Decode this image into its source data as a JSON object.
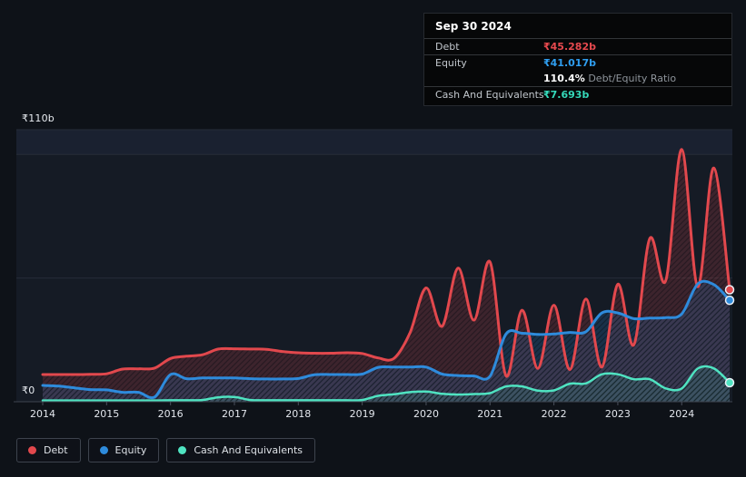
{
  "axis": {
    "y_max_label": "₹110b",
    "y_zero_label": "₹0"
  },
  "tooltip": {
    "date": "Sep 30 2024",
    "debt_label": "Debt",
    "debt_value": "₹45.282b",
    "equity_label": "Equity",
    "equity_value": "₹41.017b",
    "ratio_value": "110.4%",
    "ratio_label": "Debt/Equity Ratio",
    "cash_label": "Cash And Equivalents",
    "cash_value": "₹7.693b"
  },
  "legend": {
    "items": [
      {
        "label": "Debt",
        "color": "#e2484d"
      },
      {
        "label": "Equity",
        "color": "#2e8bdc"
      },
      {
        "label": "Cash And Equivalents",
        "color": "#4fe3c1"
      }
    ]
  },
  "colors": {
    "page_background": "#0e1218",
    "plot_background": "#151b25",
    "plot_band": "#1a2130",
    "gridline": "#272d38",
    "axis_line": "#3e4450",
    "tick": "#4a505c",
    "axis_text": "#e3e7ed",
    "debt": "#e2484d",
    "equity": "#2e8bdc",
    "cash": "#4fe3c1",
    "debt_fill": "rgba(226,74,78,0.20)",
    "equity_fill": "rgba(46,139,220,0.20)",
    "cash_fill": "rgba(79,227,193,0.15)"
  },
  "chart_data": {
    "type": "area",
    "unit": "₹b (INR billions)",
    "ylim": [
      0,
      110
    ],
    "gridlines_at": [
      0,
      50,
      100,
      110
    ],
    "xticks": [
      2014,
      2015,
      2016,
      2017,
      2018,
      2019,
      2020,
      2021,
      2022,
      2023,
      2024
    ],
    "x_range": [
      2014,
      2024.75
    ],
    "legend_position": "bottom-left",
    "x": [
      2014,
      2014.25,
      2014.5,
      2014.75,
      2015,
      2015.25,
      2015.5,
      2015.75,
      2016,
      2016.25,
      2016.5,
      2016.75,
      2017,
      2017.25,
      2017.5,
      2017.75,
      2018,
      2018.25,
      2018.5,
      2018.75,
      2019,
      2019.25,
      2019.5,
      2019.75,
      2020,
      2020.25,
      2020.5,
      2020.75,
      2021,
      2021.25,
      2021.5,
      2021.75,
      2022,
      2022.25,
      2022.5,
      2022.75,
      2023,
      2023.25,
      2023.5,
      2023.75,
      2024,
      2024.25,
      2024.5,
      2024.75
    ],
    "series": [
      {
        "name": "Debt",
        "color": "#e2484d",
        "values": [
          11.0,
          11.0,
          11.0,
          11.1,
          11.3,
          13.2,
          13.3,
          13.6,
          17.5,
          18.4,
          19.0,
          21.3,
          21.4,
          21.3,
          21.2,
          20.3,
          19.8,
          19.6,
          19.6,
          19.8,
          19.5,
          17.7,
          17.6,
          28.0,
          46.0,
          30.5,
          54.0,
          33.0,
          56.5,
          10.5,
          37.0,
          13.5,
          39.0,
          13.0,
          41.5,
          14.0,
          47.5,
          23.0,
          66.0,
          49.0,
          102.0,
          46.5,
          94.5,
          45.282
        ]
      },
      {
        "name": "Equity",
        "color": "#2e8bdc",
        "values": [
          6.6,
          6.3,
          5.6,
          4.9,
          4.8,
          3.8,
          3.8,
          1.9,
          11.0,
          9.3,
          9.6,
          9.6,
          9.6,
          9.3,
          9.2,
          9.2,
          9.4,
          10.9,
          11.0,
          11.0,
          11.2,
          13.9,
          14.0,
          14.0,
          14.0,
          11.2,
          10.6,
          10.4,
          10.3,
          27.4,
          27.7,
          27.2,
          27.4,
          28.0,
          28.3,
          35.9,
          35.9,
          33.6,
          33.8,
          34.0,
          35.5,
          47.6,
          47.4,
          41.017
        ]
      },
      {
        "name": "Cash And Equivalents",
        "color": "#4fe3c1",
        "values": [
          0.5,
          0.5,
          0.5,
          0.5,
          0.5,
          0.5,
          0.5,
          0.5,
          0.6,
          0.6,
          0.7,
          1.8,
          1.9,
          0.7,
          0.6,
          0.6,
          0.6,
          0.6,
          0.6,
          0.6,
          0.7,
          2.4,
          3.0,
          3.9,
          4.1,
          3.2,
          2.9,
          3.1,
          3.5,
          6.2,
          6.2,
          4.5,
          4.6,
          7.3,
          7.4,
          11.1,
          11.1,
          9.1,
          9.1,
          5.4,
          5.4,
          13.4,
          13.5,
          7.693
        ]
      }
    ]
  }
}
